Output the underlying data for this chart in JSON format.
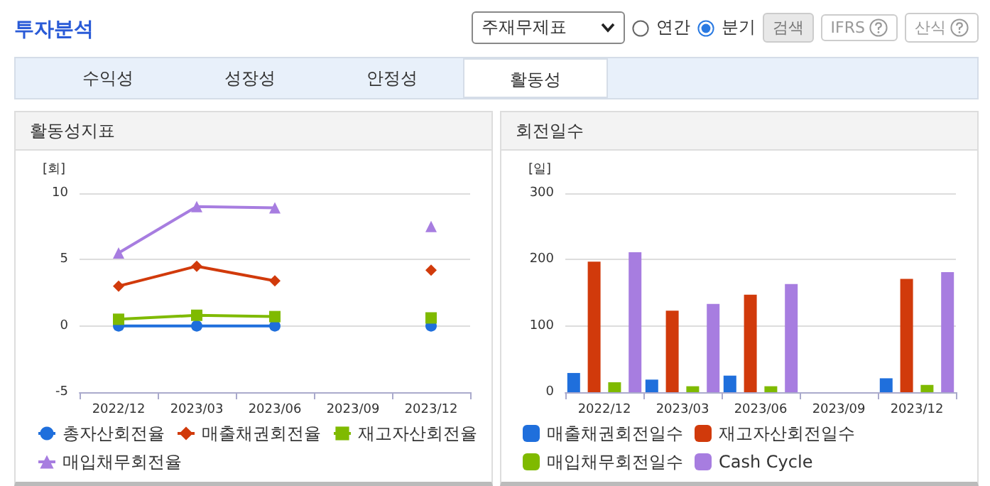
{
  "chart_data": [
    {
      "type": "other",
      "title": "투자분석",
      "annotations": [
        "주재무제표",
        "연간",
        "분기",
        "검색",
        "IFRS",
        "산식",
        "수익성",
        "성장성",
        "안정성",
        "활동성"
      ]
    },
    {
      "type": "line",
      "title": "활동성지표",
      "ylabel": "[회]",
      "categories": [
        "2022/12",
        "2023/03",
        "2023/06",
        "2023/09",
        "2023/12"
      ],
      "ylim": [
        -5,
        10
      ],
      "yticks": [
        -5,
        0,
        5,
        10
      ],
      "grid": "y",
      "legend": "bottom",
      "series": [
        {
          "name": "총자산회전율",
          "color": "#1f6fdc",
          "marker": "circle",
          "values": [
            0,
            0,
            0,
            null,
            0
          ]
        },
        {
          "name": "매출채권회전율",
          "color": "#d13a0b",
          "marker": "diamond",
          "values": [
            3.0,
            4.5,
            3.4,
            null,
            4.2
          ]
        },
        {
          "name": "재고자산회전율",
          "color": "#7fba00",
          "marker": "square",
          "values": [
            0.5,
            0.8,
            0.7,
            null,
            0.6
          ]
        },
        {
          "name": "매입채무회전율",
          "color": "#a77de0",
          "marker": "triangle",
          "values": [
            5.5,
            9.0,
            8.9,
            null,
            7.5
          ]
        }
      ]
    },
    {
      "type": "bar",
      "title": "회전일수",
      "ylabel": "[일]",
      "categories": [
        "2022/12",
        "2023/03",
        "2023/06",
        "2023/09",
        "2023/12"
      ],
      "ylim": [
        0,
        300
      ],
      "yticks": [
        0,
        100,
        200,
        300
      ],
      "grid": "y",
      "legend": "bottom",
      "series": [
        {
          "name": "매출채권회전일수",
          "color": "#1f6fdc",
          "values": [
            29,
            19,
            25,
            null,
            21
          ]
        },
        {
          "name": "재고자산회전일수",
          "color": "#d13a0b",
          "values": [
            197,
            123,
            147,
            null,
            171
          ]
        },
        {
          "name": "매입채무회전일수",
          "color": "#7fba00",
          "values": [
            15,
            9,
            9,
            null,
            11
          ]
        },
        {
          "name": "Cash Cycle",
          "color": "#a77de0",
          "values": [
            211,
            133,
            163,
            null,
            181
          ]
        }
      ]
    }
  ]
}
